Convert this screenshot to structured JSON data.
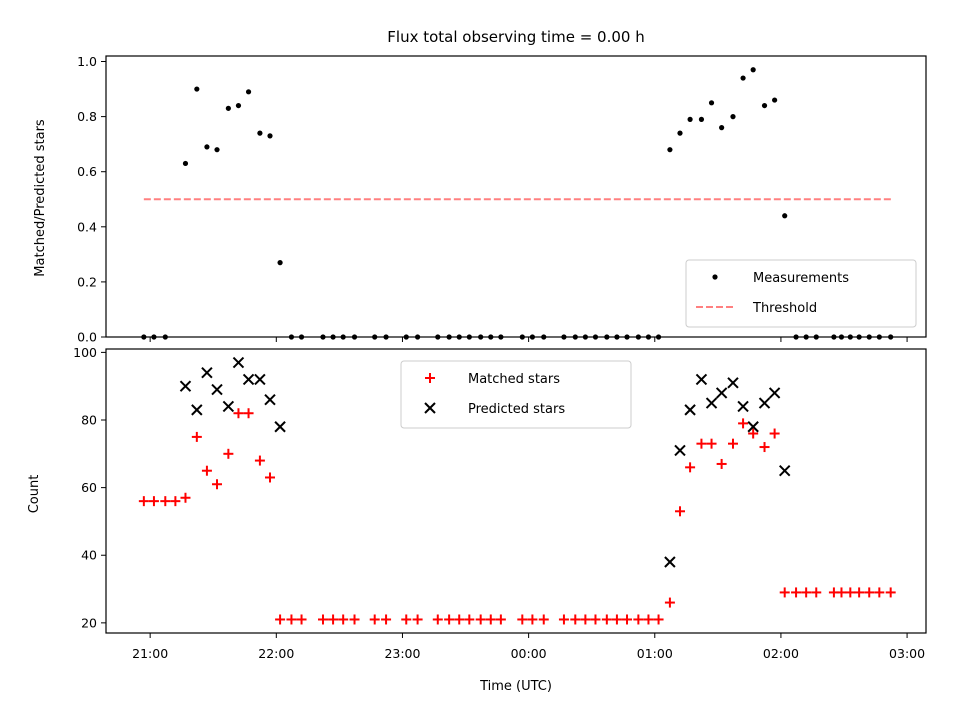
{
  "chart_data": [
    {
      "type": "scatter",
      "title": "Flux total observing time = 0.00 h",
      "xlabel": "",
      "ylabel": "Matched/Predicted stars",
      "xlim": [
        20.65,
        27.15
      ],
      "ylim": [
        0,
        1.02
      ],
      "yticks": [
        0.0,
        0.2,
        0.4,
        0.6,
        0.8,
        1.0
      ],
      "ytick_labels": [
        "0.0",
        "0.2",
        "0.4",
        "0.6",
        "0.8",
        "1.0"
      ],
      "xticks": [
        21,
        22,
        23,
        24,
        25,
        26,
        27
      ],
      "xtick_labels": [],
      "legend": {
        "location": "lower-right",
        "entries": [
          {
            "label": "Measurements",
            "marker": "dot",
            "color": "#000000"
          },
          {
            "label": "Threshold",
            "marker": "dashed-line",
            "color": "#ff8080"
          }
        ]
      },
      "threshold": {
        "x": [
          20.95,
          26.88
        ],
        "y": 0.5,
        "color": "#ff8080"
      },
      "series": [
        {
          "name": "Measurements",
          "color": "#000000",
          "points": [
            [
              20.95,
              0
            ],
            [
              21.03,
              0
            ],
            [
              21.12,
              0
            ],
            [
              21.28,
              0.63
            ],
            [
              21.37,
              0.9
            ],
            [
              21.45,
              0.69
            ],
            [
              21.53,
              0.68
            ],
            [
              21.62,
              0.83
            ],
            [
              21.7,
              0.84
            ],
            [
              21.78,
              0.89
            ],
            [
              21.87,
              0.74
            ],
            [
              21.95,
              0.73
            ],
            [
              22.03,
              0.27
            ],
            [
              22.12,
              0
            ],
            [
              22.2,
              0
            ],
            [
              22.37,
              0
            ],
            [
              22.45,
              0
            ],
            [
              22.53,
              0
            ],
            [
              22.62,
              0
            ],
            [
              22.78,
              0
            ],
            [
              22.87,
              0
            ],
            [
              23.03,
              0
            ],
            [
              23.12,
              0
            ],
            [
              23.28,
              0
            ],
            [
              23.37,
              0
            ],
            [
              23.45,
              0
            ],
            [
              23.53,
              0
            ],
            [
              23.62,
              0
            ],
            [
              23.7,
              0
            ],
            [
              23.78,
              0
            ],
            [
              23.95,
              0
            ],
            [
              24.03,
              0
            ],
            [
              24.12,
              0
            ],
            [
              24.28,
              0
            ],
            [
              24.37,
              0
            ],
            [
              24.45,
              0
            ],
            [
              24.53,
              0
            ],
            [
              24.62,
              0
            ],
            [
              24.7,
              0
            ],
            [
              24.78,
              0
            ],
            [
              24.87,
              0
            ],
            [
              24.95,
              0
            ],
            [
              25.03,
              0
            ],
            [
              25.12,
              0.68
            ],
            [
              25.2,
              0.74
            ],
            [
              25.28,
              0.79
            ],
            [
              25.37,
              0.79
            ],
            [
              25.45,
              0.85
            ],
            [
              25.53,
              0.76
            ],
            [
              25.62,
              0.8
            ],
            [
              25.7,
              0.94
            ],
            [
              25.78,
              0.97
            ],
            [
              25.87,
              0.84
            ],
            [
              25.95,
              0.86
            ],
            [
              26.03,
              0.44
            ],
            [
              26.12,
              0
            ],
            [
              26.2,
              0
            ],
            [
              26.28,
              0
            ],
            [
              26.42,
              0
            ],
            [
              26.48,
              0
            ],
            [
              26.55,
              0
            ],
            [
              26.62,
              0
            ],
            [
              26.7,
              0
            ],
            [
              26.78,
              0
            ],
            [
              26.87,
              0
            ]
          ]
        }
      ]
    },
    {
      "type": "scatter",
      "title": "",
      "xlabel": "Time (UTC)",
      "ylabel": "Count",
      "xlim": [
        20.65,
        27.15
      ],
      "ylim": [
        17,
        101
      ],
      "yticks": [
        20,
        40,
        60,
        80,
        100
      ],
      "ytick_labels": [
        "20",
        "40",
        "60",
        "80",
        "100"
      ],
      "xticks": [
        21,
        22,
        23,
        24,
        25,
        26,
        27
      ],
      "xtick_labels": [
        "21:00",
        "22:00",
        "23:00",
        "00:00",
        "01:00",
        "02:00",
        "03:00"
      ],
      "legend": {
        "location": "upper-center",
        "entries": [
          {
            "label": "Matched stars",
            "marker": "plus",
            "color": "#ff0000"
          },
          {
            "label": "Predicted stars",
            "marker": "x",
            "color": "#000000"
          }
        ]
      },
      "series": [
        {
          "name": "Matched stars",
          "color": "#ff0000",
          "marker": "plus",
          "points": [
            [
              20.95,
              56
            ],
            [
              21.03,
              56
            ],
            [
              21.12,
              56
            ],
            [
              21.2,
              56
            ],
            [
              21.28,
              57
            ],
            [
              21.37,
              75
            ],
            [
              21.45,
              65
            ],
            [
              21.53,
              61
            ],
            [
              21.62,
              70
            ],
            [
              21.7,
              82
            ],
            [
              21.78,
              82
            ],
            [
              21.87,
              68
            ],
            [
              21.95,
              63
            ],
            [
              22.03,
              21
            ],
            [
              22.12,
              21
            ],
            [
              22.2,
              21
            ],
            [
              22.37,
              21
            ],
            [
              22.45,
              21
            ],
            [
              22.53,
              21
            ],
            [
              22.62,
              21
            ],
            [
              22.78,
              21
            ],
            [
              22.87,
              21
            ],
            [
              23.03,
              21
            ],
            [
              23.12,
              21
            ],
            [
              23.28,
              21
            ],
            [
              23.37,
              21
            ],
            [
              23.45,
              21
            ],
            [
              23.53,
              21
            ],
            [
              23.62,
              21
            ],
            [
              23.7,
              21
            ],
            [
              23.78,
              21
            ],
            [
              23.95,
              21
            ],
            [
              24.03,
              21
            ],
            [
              24.12,
              21
            ],
            [
              24.28,
              21
            ],
            [
              24.37,
              21
            ],
            [
              24.45,
              21
            ],
            [
              24.53,
              21
            ],
            [
              24.62,
              21
            ],
            [
              24.7,
              21
            ],
            [
              24.78,
              21
            ],
            [
              24.87,
              21
            ],
            [
              24.95,
              21
            ],
            [
              25.03,
              21
            ],
            [
              25.12,
              26
            ],
            [
              25.2,
              53
            ],
            [
              25.28,
              66
            ],
            [
              25.37,
              73
            ],
            [
              25.45,
              73
            ],
            [
              25.53,
              67
            ],
            [
              25.62,
              73
            ],
            [
              25.7,
              79
            ],
            [
              25.78,
              76
            ],
            [
              25.87,
              72
            ],
            [
              25.95,
              76
            ],
            [
              26.03,
              29
            ],
            [
              26.12,
              29
            ],
            [
              26.2,
              29
            ],
            [
              26.28,
              29
            ],
            [
              26.42,
              29
            ],
            [
              26.48,
              29
            ],
            [
              26.55,
              29
            ],
            [
              26.62,
              29
            ],
            [
              26.7,
              29
            ],
            [
              26.78,
              29
            ],
            [
              26.87,
              29
            ]
          ]
        },
        {
          "name": "Predicted stars",
          "color": "#000000",
          "marker": "x",
          "points": [
            [
              21.28,
              90
            ],
            [
              21.37,
              83
            ],
            [
              21.45,
              94
            ],
            [
              21.53,
              89
            ],
            [
              21.62,
              84
            ],
            [
              21.7,
              97
            ],
            [
              21.78,
              92
            ],
            [
              21.87,
              92
            ],
            [
              21.95,
              86
            ],
            [
              22.03,
              78
            ],
            [
              25.12,
              38
            ],
            [
              25.2,
              71
            ],
            [
              25.28,
              83
            ],
            [
              25.37,
              92
            ],
            [
              25.45,
              85
            ],
            [
              25.53,
              88
            ],
            [
              25.62,
              91
            ],
            [
              25.7,
              84
            ],
            [
              25.78,
              78
            ],
            [
              25.87,
              85
            ],
            [
              25.95,
              88
            ],
            [
              26.03,
              65
            ]
          ]
        }
      ]
    }
  ]
}
